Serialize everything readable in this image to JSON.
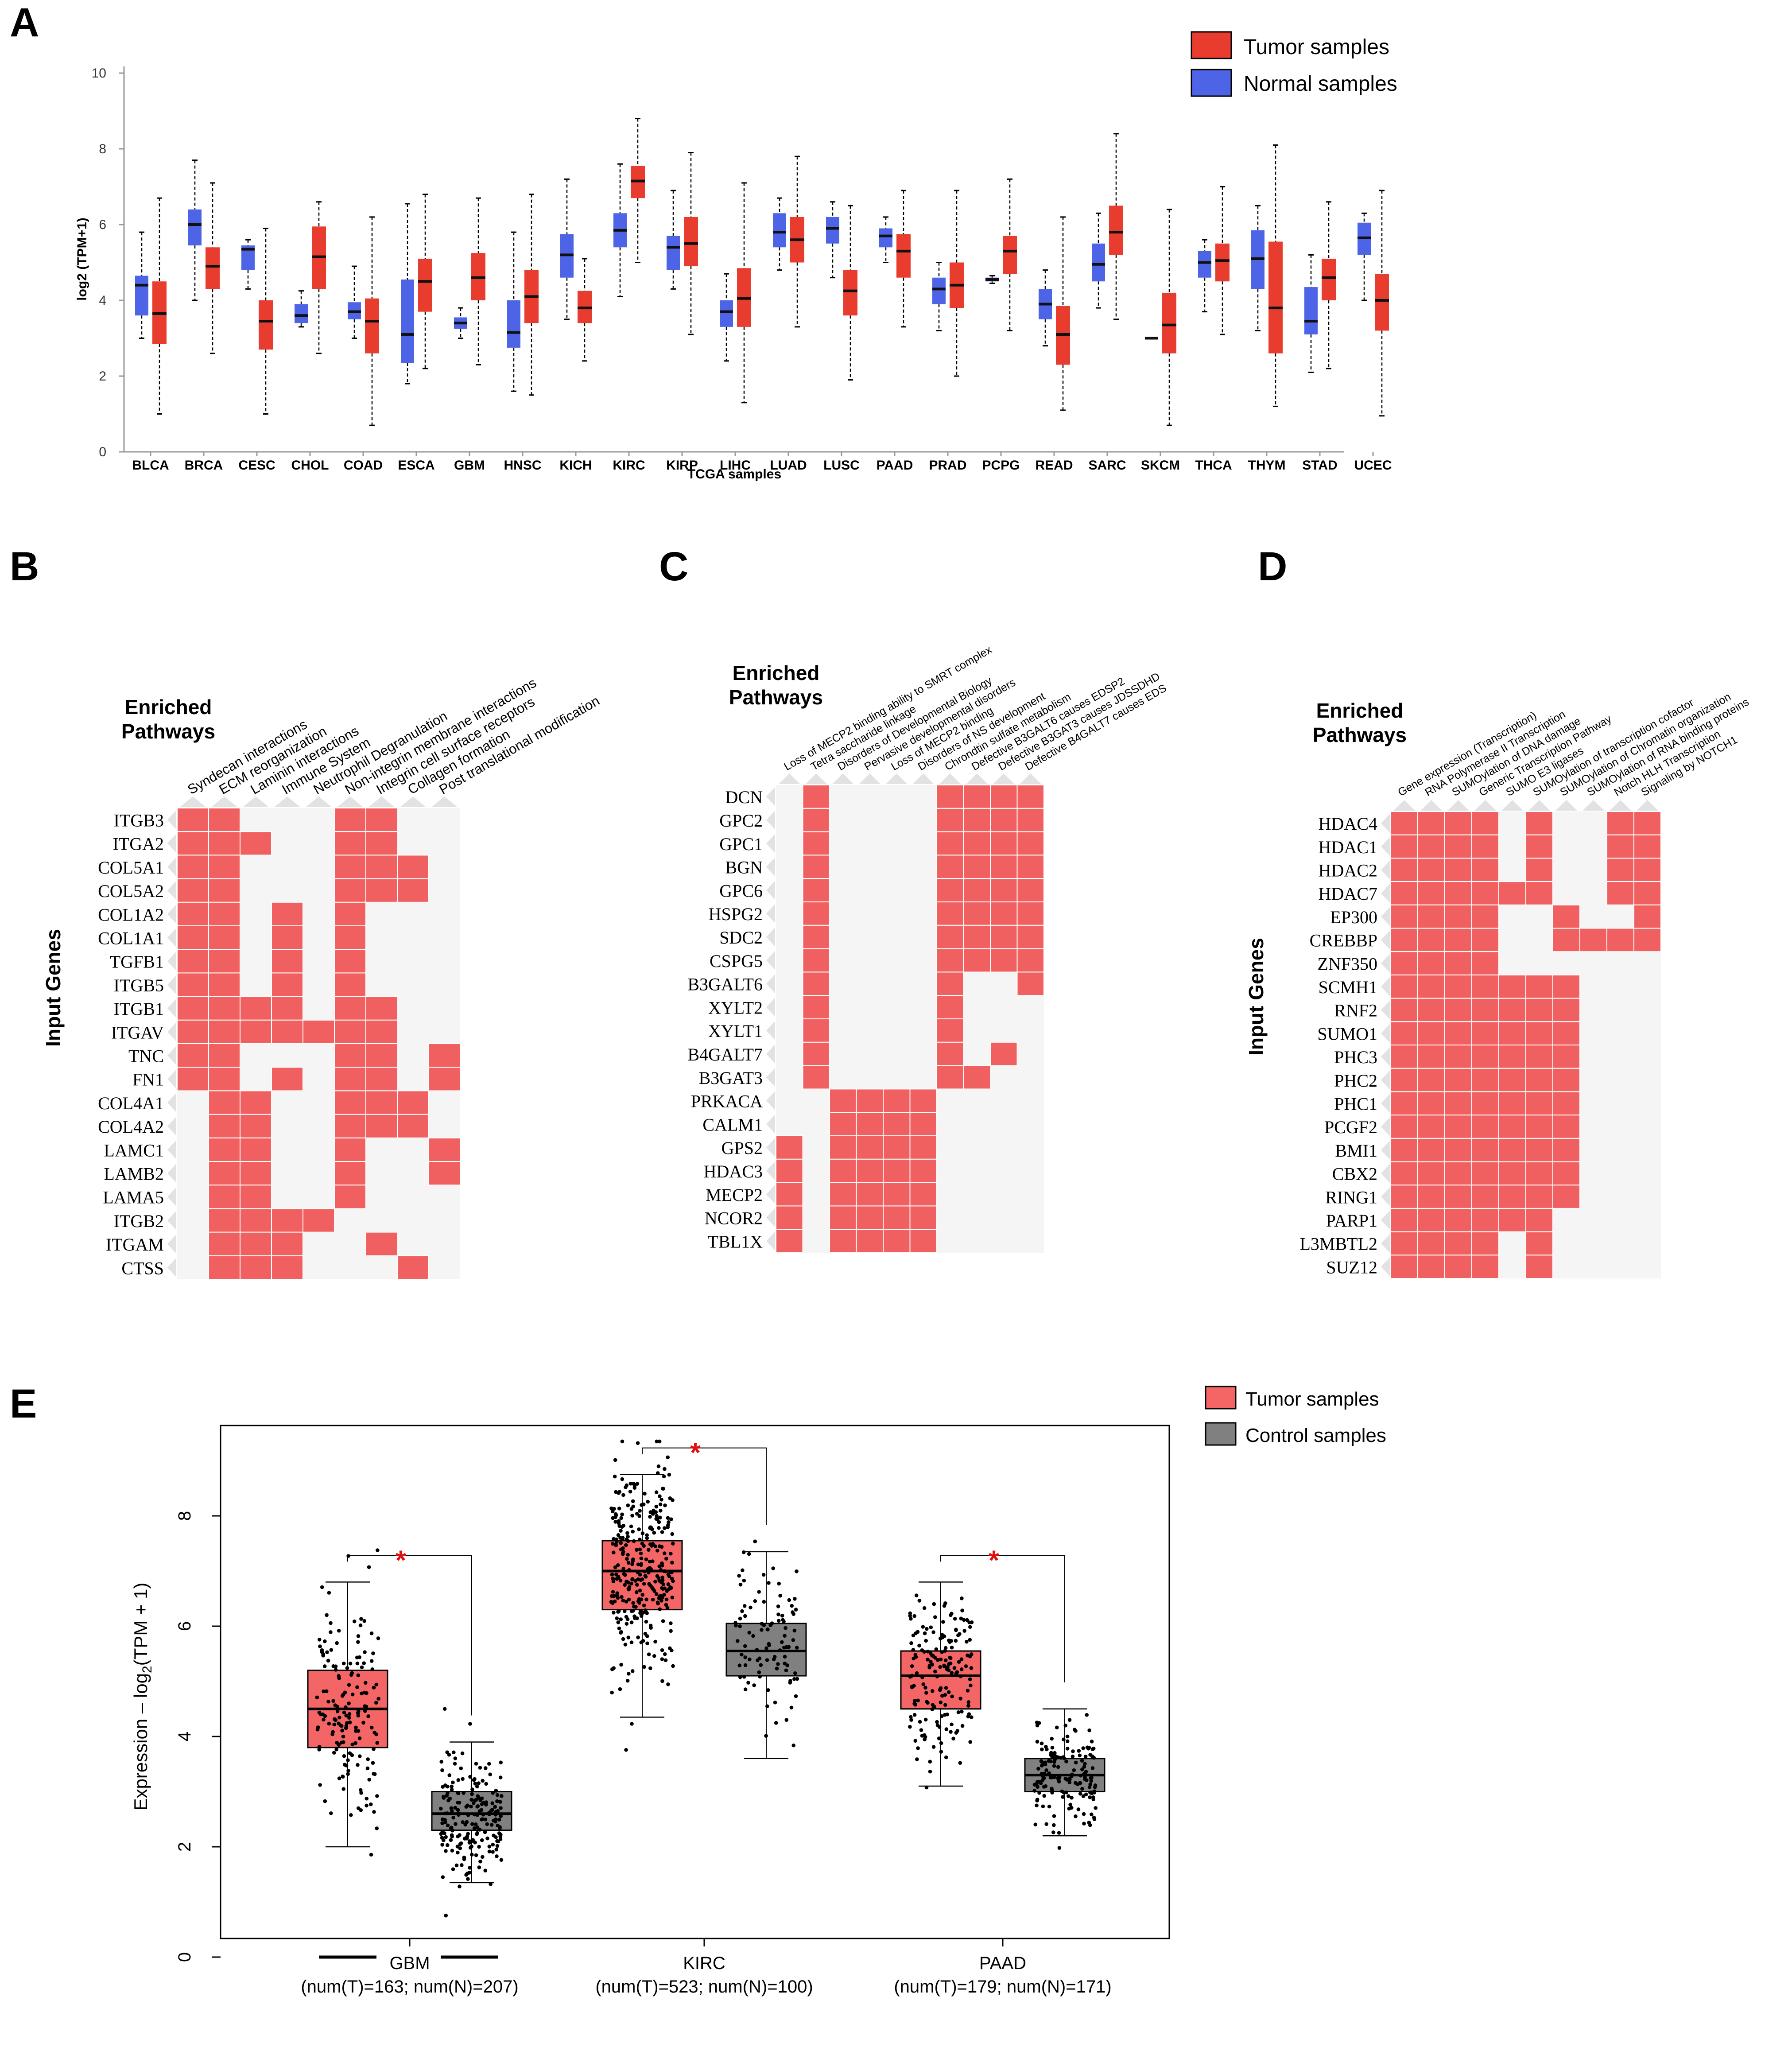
{
  "colors": {
    "tumor_red": "#e83d2e",
    "normal_blue": "#4e64e6",
    "enriched_pink": "#f06060",
    "empty_cell": "#f5f5f5",
    "gepia_tumor": "#f46666",
    "gepia_control": "#808080",
    "significance_star": "#e01010"
  },
  "panel_A": {
    "letter": "A",
    "legend": [
      "Tumor samples",
      "Normal samples"
    ],
    "ylabel": "log2 (TPM+1)",
    "xlabel": "TCGA samples",
    "yticks": [
      "0",
      "2",
      "4",
      "6",
      "8",
      "10"
    ]
  },
  "panel_B": {
    "letter": "B",
    "title_line1": "Enriched",
    "title_line2": "Pathways",
    "ylabel": "Input Genes",
    "pathways": [
      "Syndecan interactions",
      "ECM reorganization",
      "Laminin interactions",
      "Immune System",
      "Neutrophil Degranulation",
      "Non-integrin membrane interactions",
      "Integrin cell surface receptors",
      "Collagen formation",
      "Post translational modification"
    ],
    "genes": [
      "ITGB3",
      "ITGA2",
      "COL5A1",
      "COL5A2",
      "COL1A2",
      "COL1A1",
      "TGFB1",
      "ITGB5",
      "ITGB1",
      "ITGAV",
      "TNC",
      "FN1",
      "COL4A1",
      "COL4A2",
      "LAMC1",
      "LAMB2",
      "LAMA5",
      "ITGB2",
      "ITGAM",
      "CTSS"
    ],
    "matrix": [
      "110001100",
      "111001100",
      "110001110",
      "110001110",
      "110101000",
      "110101000",
      "110101000",
      "110101000",
      "111101100",
      "111111100",
      "110001101",
      "110101101",
      "011001110",
      "011001110",
      "011001001",
      "011001001",
      "011001000",
      "011110000",
      "011100100",
      "011100010"
    ]
  },
  "panel_C": {
    "letter": "C",
    "title_line1": "Enriched",
    "title_line2": "Pathways",
    "pathways": [
      "Loss of MECP2 binding ability to SMRT complex",
      "Tetra saccharide linkage",
      "Disorders of Developmental Biology",
      "Pervasive developmental disorders",
      "Loss of MECP2 binding",
      "Disorders of NS development",
      "Chrondtin sulfate metabolism",
      "Defective B3GALT6 causes EDSP2",
      "Defective B3GAT3 causes JDSSDHD",
      "Defective B4GALT7 causes EDS"
    ],
    "genes": [
      "DCN",
      "GPC2",
      "GPC1",
      "BGN",
      "GPC6",
      "HSPG2",
      "SDC2",
      "CSPG5",
      "B3GALT6",
      "XYLT2",
      "XYLT1",
      "B4GALT7",
      "B3GAT3",
      "PRKACA",
      "CALM1",
      "GPS2",
      "HDAC3",
      "MECP2",
      "NCOR2",
      "TBL1X"
    ],
    "matrix": [
      "0100001111",
      "0100001111",
      "0100001111",
      "0100001111",
      "0100001111",
      "0100001111",
      "0100001111",
      "0100001111",
      "0100001001",
      "0100001000",
      "0100001000",
      "0100001010",
      "0100001100",
      "0011110000",
      "0011110000",
      "1011110000",
      "1011110000",
      "1011110000",
      "1011110000",
      "1011110000"
    ]
  },
  "panel_D": {
    "letter": "D",
    "title_line1": "Enriched",
    "title_line2": "Pathways",
    "ylabel": "Input Genes",
    "pathways": [
      "Gene expression (Transcription)",
      "RNA Polymerase II Transcription",
      "SUMOylation of DNA damage",
      "Generic Transcription Pathway",
      "SUMO E3 ligases",
      "SUMOylation of transcription cofactor",
      "SUMOylation of Chromatin organization",
      "SUMOylation of RNA binding proteins",
      "Notch HLH Transcription",
      "Signaling by NOTCH1"
    ],
    "genes": [
      "HDAC4",
      "HDAC1",
      "HDAC2",
      "HDAC7",
      "EP300",
      "CREBBP",
      "ZNF350",
      "SCMH1",
      "RNF2",
      "SUMO1",
      "PHC3",
      "PHC2",
      "PHC1",
      "PCGF2",
      "BMI1",
      "CBX2",
      "RING1",
      "PARP1",
      "L3MBTL2",
      "SUZ12"
    ],
    "matrix": [
      "1111010011",
      "1111010011",
      "1111010011",
      "1111110011",
      "1111001001",
      "1111001111",
      "1111000000",
      "1111111000",
      "1111111000",
      "1111111000",
      "1111111000",
      "1111111000",
      "1111111000",
      "1111111000",
      "1111111000",
      "1111111000",
      "1111111000",
      "1111110000",
      "1111010000",
      "1111010000"
    ]
  },
  "panel_E": {
    "letter": "E",
    "legend": [
      "Tumor samples",
      "Control samples"
    ],
    "ylabel_prefix": "Expression – log",
    "ylabel_sub": "2",
    "ylabel_suffix": "(TPM + 1)",
    "star": "*",
    "groups": [
      {
        "name": "GBM",
        "counts": "(num(T)=163; num(N)=207)"
      },
      {
        "name": "KIRC",
        "counts": "(num(T)=523; num(N)=100)"
      },
      {
        "name": "PAAD",
        "counts": "(num(T)=179; num(N)=171)"
      }
    ]
  },
  "chart_data": [
    {
      "type": "bar",
      "subtype": "boxplot",
      "panel": "A",
      "xlabel": "TCGA samples",
      "ylabel": "log2 (TPM+1)",
      "ylim": [
        0,
        10
      ],
      "grid": false,
      "legend_position": "top-right",
      "categories": [
        "BLCA",
        "BRCA",
        "CESC",
        "CHOL",
        "COAD",
        "ESCA",
        "GBM",
        "HNSC",
        "KICH",
        "KIRC",
        "KIRP",
        "LIHC",
        "LUAD",
        "LUSC",
        "PAAD",
        "PRAD",
        "PCPG",
        "READ",
        "SARC",
        "SKCM",
        "THCA",
        "THYM",
        "STAD",
        "UCEC"
      ],
      "series": [
        {
          "name": "Normal samples",
          "stats": [
            [
              3.0,
              3.6,
              4.4,
              4.65,
              5.8
            ],
            [
              4.0,
              5.45,
              6.0,
              6.4,
              7.7
            ],
            [
              4.3,
              4.8,
              5.35,
              5.45,
              5.6
            ],
            [
              3.3,
              3.4,
              3.6,
              3.9,
              4.25
            ],
            [
              3.0,
              3.5,
              3.7,
              3.95,
              4.9
            ],
            [
              1.8,
              2.35,
              3.1,
              4.55,
              6.55
            ],
            [
              3.0,
              3.25,
              3.4,
              3.55,
              3.8
            ],
            [
              1.6,
              2.75,
              3.15,
              4.0,
              5.8
            ],
            [
              3.5,
              4.6,
              5.2,
              5.75,
              7.2
            ],
            [
              4.1,
              5.4,
              5.85,
              6.3,
              7.6
            ],
            [
              4.3,
              4.8,
              5.4,
              5.7,
              6.9
            ],
            [
              2.4,
              3.3,
              3.7,
              4.0,
              4.7
            ],
            [
              4.8,
              5.4,
              5.8,
              6.3,
              6.7
            ],
            [
              4.6,
              5.5,
              5.9,
              6.2,
              6.6
            ],
            [
              5.0,
              5.4,
              5.7,
              5.9,
              6.2
            ],
            [
              3.2,
              3.9,
              4.3,
              4.6,
              5.0
            ],
            [
              4.45,
              4.5,
              4.55,
              4.6,
              4.65
            ],
            [
              2.8,
              3.5,
              3.9,
              4.3,
              4.8
            ],
            [
              3.8,
              4.5,
              4.95,
              5.5,
              6.3
            ],
            [
              3.0,
              3.0,
              3.0,
              3.0,
              3.0
            ],
            [
              3.7,
              4.6,
              5.0,
              5.3,
              5.6
            ],
            [
              3.2,
              4.3,
              5.1,
              5.85,
              6.5
            ],
            [
              2.1,
              3.1,
              3.45,
              4.35,
              5.2
            ],
            [
              4.0,
              5.2,
              5.65,
              6.05,
              6.3
            ]
          ]
        },
        {
          "name": "Tumor samples",
          "stats": [
            [
              1.0,
              2.85,
              3.65,
              4.5,
              6.7
            ],
            [
              2.6,
              4.3,
              4.9,
              5.4,
              7.1
            ],
            [
              1.0,
              2.7,
              3.45,
              4.0,
              5.9
            ],
            [
              2.6,
              4.3,
              5.15,
              5.95,
              6.6
            ],
            [
              0.7,
              2.6,
              3.45,
              4.05,
              6.2
            ],
            [
              2.2,
              3.7,
              4.5,
              5.1,
              6.8
            ],
            [
              2.3,
              4.0,
              4.6,
              5.25,
              6.7
            ],
            [
              1.5,
              3.4,
              4.1,
              4.8,
              6.8
            ],
            [
              2.4,
              3.4,
              3.8,
              4.25,
              5.1
            ],
            [
              5.0,
              6.7,
              7.15,
              7.55,
              8.8
            ],
            [
              3.1,
              4.9,
              5.5,
              6.2,
              7.9
            ],
            [
              1.3,
              3.3,
              4.05,
              4.85,
              7.1
            ],
            [
              3.3,
              5.0,
              5.6,
              6.2,
              7.8
            ],
            [
              1.9,
              3.6,
              4.25,
              4.8,
              6.5
            ],
            [
              3.3,
              4.6,
              5.3,
              5.75,
              6.9
            ],
            [
              2.0,
              3.8,
              4.4,
              5.0,
              6.9
            ],
            [
              3.2,
              4.7,
              5.3,
              5.7,
              7.2
            ],
            [
              1.1,
              2.3,
              3.1,
              3.85,
              6.2
            ],
            [
              3.5,
              5.2,
              5.8,
              6.5,
              8.4
            ],
            [
              0.7,
              2.6,
              3.35,
              4.2,
              6.4
            ],
            [
              3.1,
              4.5,
              5.05,
              5.5,
              7.0
            ],
            [
              1.2,
              2.6,
              3.8,
              5.55,
              8.1
            ],
            [
              2.2,
              4.0,
              4.6,
              5.1,
              6.6
            ],
            [
              0.95,
              3.2,
              4.0,
              4.7,
              6.9
            ]
          ]
        }
      ]
    },
    {
      "type": "scatter",
      "subtype": "boxplot_with_jitter",
      "panel": "E",
      "ylabel": "Expression – log2(TPM + 1)",
      "ylim": [
        -0.3,
        9.3
      ],
      "yticks": [
        0,
        2,
        4,
        6,
        8
      ],
      "grid": false,
      "legend_position": "outside-top-right",
      "categories": [
        "GBM",
        "KIRC",
        "PAAD"
      ],
      "series": [
        {
          "name": "Tumor samples",
          "n": [
            163,
            523,
            179
          ],
          "stats": [
            [
              2.0,
              3.8,
              4.5,
              5.2,
              6.8
            ],
            [
              4.35,
              6.3,
              7.0,
              7.55,
              8.75
            ],
            [
              3.1,
              4.5,
              5.1,
              5.55,
              6.8
            ]
          ]
        },
        {
          "name": "Control samples",
          "n": [
            207,
            100,
            171
          ],
          "stats": [
            [
              1.35,
              2.3,
              2.6,
              3.0,
              3.9
            ],
            [
              3.6,
              5.1,
              5.55,
              6.05,
              7.35
            ],
            [
              2.2,
              3.0,
              3.3,
              3.6,
              4.5
            ]
          ]
        }
      ],
      "significant": [
        true,
        true,
        true
      ]
    }
  ]
}
